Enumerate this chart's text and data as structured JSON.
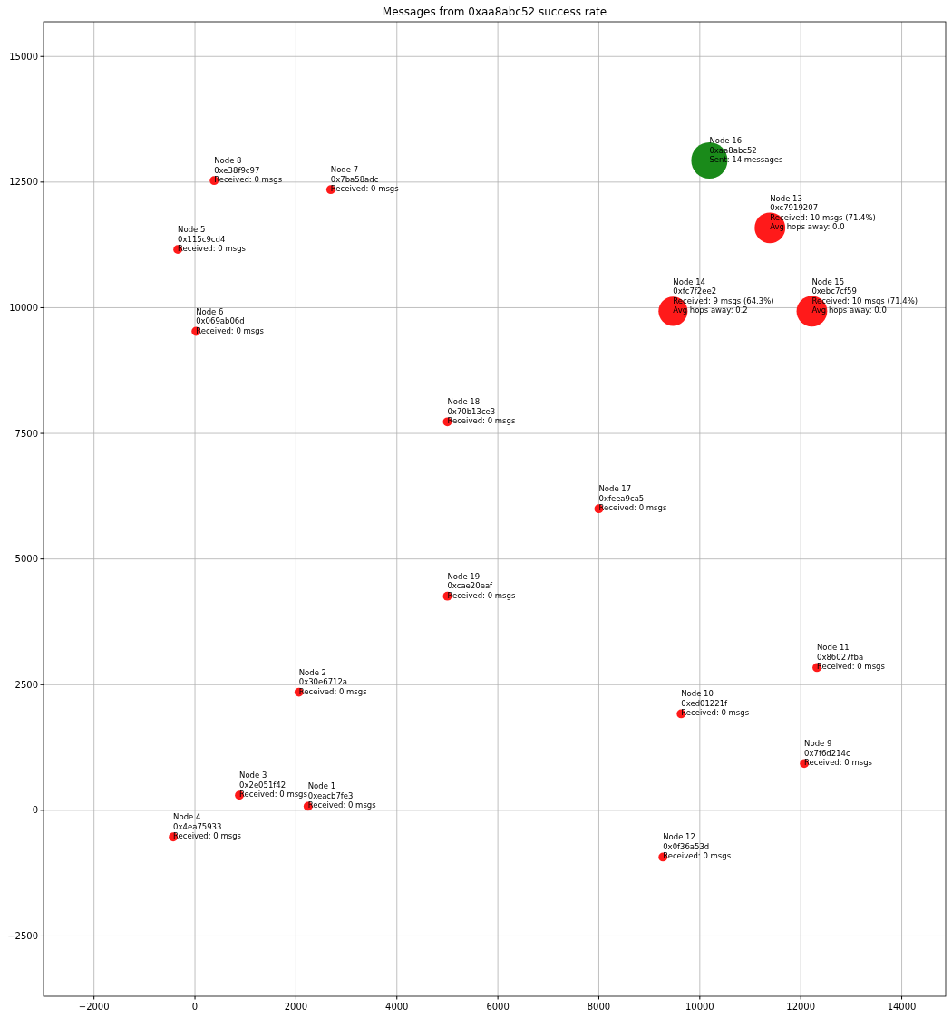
{
  "chart_data": {
    "type": "bubble",
    "title": "Messages from 0xaa8abc52 success rate",
    "xlim": [
      -3000,
      14870
    ],
    "ylim": [
      -3700,
      15690
    ],
    "xticks": [
      {
        "value": -2000,
        "label": "−2000"
      },
      0,
      2000,
      4000,
      6000,
      8000,
      10000,
      12000,
      14000
    ],
    "yticks": [
      {
        "value": -2500,
        "label": "−2500"
      },
      0,
      2500,
      5000,
      7500,
      10000,
      12500,
      15000
    ],
    "grid": true,
    "series": [
      {
        "color": "#ff1a1a",
        "x": [
          2240,
          2060,
          880,
          -430,
          -340,
          20,
          2690,
          380,
          12070,
          9630,
          12320,
          9270,
          11390,
          9470,
          12220,
          8000,
          5000,
          5000
        ],
        "values": [
          80,
          2350,
          300,
          -530,
          11160,
          9530,
          12350,
          12530,
          930,
          1920,
          2840,
          -930,
          11590,
          9930,
          9930,
          6000,
          7730,
          4260
        ],
        "sizes": [
          0.06,
          0.06,
          0.06,
          0.06,
          0.06,
          0.06,
          0.06,
          0.06,
          0.06,
          0.06,
          0.06,
          0.06,
          0.714,
          0.643,
          0.714,
          0.06,
          0.06,
          0.06
        ]
      },
      {
        "color": "#1a8a1a",
        "x": [
          10190
        ],
        "values": [
          12930
        ],
        "sizes": [
          1
        ]
      }
    ],
    "annotations": [
      {
        "text": "Node 1\n0xeacb7fe3\nReceived: 0 msgs",
        "x": 2240,
        "y": 80
      },
      {
        "text": "Node 2\n0x30e6712a\nReceived: 0 msgs",
        "x": 2060,
        "y": 2350
      },
      {
        "text": "Node 3\n0x2e051f42\nReceived: 0 msgs",
        "x": 880,
        "y": 300
      },
      {
        "text": "Node 4\n0x4ea75933\nReceived: 0 msgs",
        "x": -430,
        "y": -530
      },
      {
        "text": "Node 5\n0x115c9cd4\nReceived: 0 msgs",
        "x": -340,
        "y": 11160
      },
      {
        "text": "Node 6\n0x069ab06d\nReceived: 0 msgs",
        "x": 20,
        "y": 9530
      },
      {
        "text": "Node 7\n0x7ba58adc\nReceived: 0 msgs",
        "x": 2690,
        "y": 12350
      },
      {
        "text": "Node 8\n0xe38f9c97\nReceived: 0 msgs",
        "x": 380,
        "y": 12530
      },
      {
        "text": "Node 9\n0x7f6d214c\nReceived: 0 msgs",
        "x": 12070,
        "y": 930
      },
      {
        "text": "Node 10\n0xed01221f\nReceived: 0 msgs",
        "x": 9630,
        "y": 1920
      },
      {
        "text": "Node 11\n0x86027fba\nReceived: 0 msgs",
        "x": 12320,
        "y": 2840
      },
      {
        "text": "Node 12\n0x0f36a53d\nReceived: 0 msgs",
        "x": 9270,
        "y": -930
      },
      {
        "text": "Node 13\n0xc7919207\nReceived: 10 msgs (71.4%)\nAvg hops away: 0.0",
        "x": 11390,
        "y": 11590
      },
      {
        "text": "Node 14\n0xfc7f2ee2\nReceived: 9 msgs (64.3%)\nAvg hops away: 0.2",
        "x": 9470,
        "y": 9930
      },
      {
        "text": "Node 15\n0xebc7cf59\nReceived: 10 msgs (71.4%)\nAvg hops away: 0.0",
        "x": 12220,
        "y": 9930
      },
      {
        "text": "Node 16\n0xaa8abc52\nSent: 14 messages",
        "x": 10190,
        "y": 12930
      },
      {
        "text": "Node 17\n0xfeea9ca5\nReceived: 0 msgs",
        "x": 8000,
        "y": 6000
      },
      {
        "text": "Node 18\n0x70b13ce3\nReceived: 0 msgs",
        "x": 5000,
        "y": 7730
      },
      {
        "text": "Node 19\n0xcae20eaf\nReceived: 0 msgs",
        "x": 5000,
        "y": 4260
      }
    ]
  }
}
